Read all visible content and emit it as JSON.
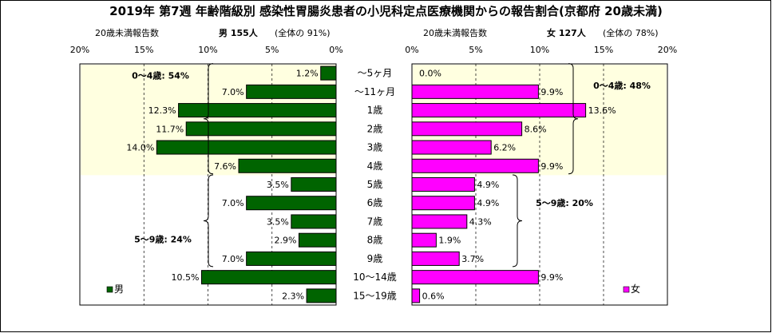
{
  "title": "2019年 第7週 年齢階級別 感染性胃腸炎患者の小児科定点医療機関からの報告割合(京都府 20歳未満)",
  "header": {
    "male_axis_label": "20歳未満報告数",
    "male_summary": "男 155人",
    "male_share": "(全体の 91%)",
    "female_axis_label": "20歳未満報告数",
    "female_summary": "女 127人",
    "female_share": "(全体の 78%)"
  },
  "colors": {
    "male": "#006400",
    "female": "#ff00ff",
    "highlight": "#ffffe0"
  },
  "chart_data": [
    {
      "type": "bar",
      "orientation": "horizontal-reversed",
      "series": [
        {
          "name": "男",
          "values": [
            1.2,
            7.0,
            12.3,
            11.7,
            14.0,
            7.6,
            3.5,
            7.0,
            3.5,
            2.9,
            7.0,
            10.5,
            2.3
          ]
        }
      ],
      "categories": [
        "～5ヶ月",
        "～11ヶ月",
        "1歳",
        "2歳",
        "3歳",
        "4歳",
        "5歳",
        "6歳",
        "7歳",
        "8歳",
        "9歳",
        "10～14歳",
        "15～19歳"
      ],
      "data_labels": [
        "1.2%",
        "7.0%",
        "12.3%",
        "11.7%",
        "14.0%",
        "7.6%",
        "3.5%",
        "7.0%",
        "3.5%",
        "2.9%",
        "7.0%",
        "10.5%",
        "2.3%"
      ],
      "xlim": [
        0,
        20
      ],
      "x_ticks": [
        "20%",
        "15%",
        "10%",
        "5%",
        "0%"
      ],
      "legend": "男",
      "legend_position": "bottom-left",
      "annotations": [
        "0～4歳: 54%",
        "5～9歳: 24%"
      ]
    },
    {
      "type": "bar",
      "orientation": "horizontal",
      "series": [
        {
          "name": "女",
          "values": [
            0.0,
            9.9,
            13.6,
            8.6,
            6.2,
            9.9,
            4.9,
            4.9,
            4.3,
            1.9,
            3.7,
            9.9,
            0.6
          ]
        }
      ],
      "categories": [
        "～5ヶ月",
        "～11ヶ月",
        "1歳",
        "2歳",
        "3歳",
        "4歳",
        "5歳",
        "6歳",
        "7歳",
        "8歳",
        "9歳",
        "10～14歳",
        "15～19歳"
      ],
      "data_labels": [
        "0.0%",
        "9.9%",
        "13.6%",
        "8.6%",
        "6.2%",
        "9.9%",
        "4.9%",
        "4.9%",
        "4.3%",
        "1.9%",
        "3.7%",
        "9.9%",
        "0.6%"
      ],
      "xlim": [
        0,
        20
      ],
      "x_ticks": [
        "0%",
        "5%",
        "10%",
        "15%",
        "20%"
      ],
      "legend": "女",
      "legend_position": "bottom-right",
      "annotations": [
        "0～4歳: 48%",
        "5～9歳: 20%"
      ]
    }
  ]
}
